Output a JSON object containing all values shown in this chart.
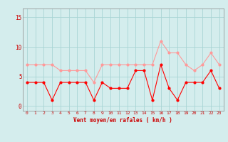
{
  "x": [
    0,
    1,
    2,
    3,
    4,
    5,
    6,
    7,
    8,
    9,
    10,
    11,
    12,
    13,
    14,
    15,
    16,
    17,
    18,
    19,
    20,
    21,
    22,
    23
  ],
  "wind_mean": [
    4,
    4,
    4,
    1,
    4,
    4,
    4,
    4,
    1,
    4,
    3,
    3,
    3,
    6,
    6,
    1,
    7,
    3,
    1,
    4,
    4,
    4,
    6,
    3
  ],
  "wind_gust": [
    7,
    7,
    7,
    7,
    6,
    6,
    6,
    6,
    4,
    7,
    7,
    7,
    7,
    7,
    7,
    7,
    11,
    9,
    9,
    7,
    6,
    7,
    9,
    7
  ],
  "xlabel": "Vent moyen/en rafales ( km/h )",
  "bg_color": "#d4eded",
  "grid_color": "#a8d4d4",
  "line_color_mean": "#ff0000",
  "line_color_gust": "#ff9999",
  "yticks": [
    0,
    5,
    10,
    15
  ],
  "ylim": [
    -0.8,
    16.5
  ],
  "xlim": [
    -0.5,
    23.5
  ]
}
